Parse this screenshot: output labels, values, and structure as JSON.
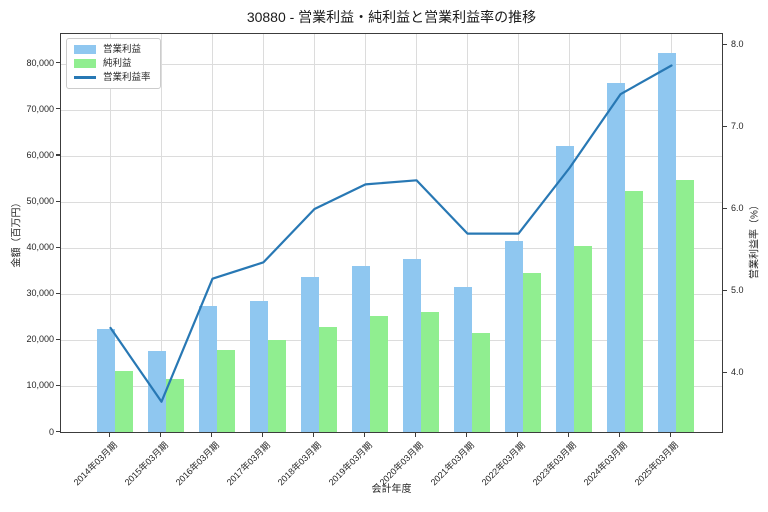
{
  "title": "30880 - 営業利益・純利益と営業利益率の推移",
  "colors": {
    "operating_profit_bar": "#8FC7F0",
    "net_profit_bar": "#90EE90",
    "margin_line": "#2878B4",
    "grid": "#DCDCDC",
    "spine": "#3C3C3C",
    "text": "#262626"
  },
  "chart_data": {
    "type": "bar",
    "title": "30880 - 営業利益・純利益と営業利益率の推移",
    "xlabel": "会計年度",
    "ylabel_left": "金額（百万円）",
    "ylabel_right": "営業利益率（%）",
    "legend_position": "upper left",
    "grid": true,
    "categories": [
      "2014年03月期",
      "2015年03月期",
      "2016年03月期",
      "2017年03月期",
      "2018年03月期",
      "2019年03月期",
      "2020年03月期",
      "2021年03月期",
      "2022年03月期",
      "2023年03月期",
      "2024年03月期",
      "2025年03月期"
    ],
    "series": [
      {
        "name": "営業利益",
        "type": "bar",
        "axis": "left",
        "color": "#8FC7F0",
        "values": [
          22400,
          17600,
          27400,
          28500,
          33700,
          36100,
          37700,
          31500,
          41500,
          62200,
          75800,
          82300
        ]
      },
      {
        "name": "純利益",
        "type": "bar",
        "axis": "left",
        "color": "#90EE90",
        "values": [
          13300,
          11500,
          17900,
          20000,
          22800,
          25200,
          26200,
          21500,
          34500,
          40500,
          52300,
          54700
        ]
      },
      {
        "name": "営業利益率",
        "type": "line",
        "axis": "right",
        "color": "#2878B4",
        "values": [
          4.55,
          3.65,
          5.15,
          5.35,
          6.0,
          6.3,
          6.35,
          5.7,
          5.7,
          6.5,
          7.4,
          7.75
        ]
      }
    ],
    "ylim_left": [
      0,
      86500
    ],
    "ylim_right": [
      3.27,
      8.13
    ],
    "yticks_left": [
      {
        "value": 0,
        "label": "0"
      },
      {
        "value": 10000,
        "label": "10,000"
      },
      {
        "value": 20000,
        "label": "20,000"
      },
      {
        "value": 30000,
        "label": "30,000"
      },
      {
        "value": 40000,
        "label": "40,000"
      },
      {
        "value": 50000,
        "label": "50,000"
      },
      {
        "value": 60000,
        "label": "60,000"
      },
      {
        "value": 70000,
        "label": "70,000"
      },
      {
        "value": 80000,
        "label": "80,000"
      }
    ],
    "yticks_right": [
      {
        "value": 4.0,
        "label": "4.0"
      },
      {
        "value": 5.0,
        "label": "5.0"
      },
      {
        "value": 6.0,
        "label": "6.0"
      },
      {
        "value": 7.0,
        "label": "7.0"
      },
      {
        "value": 8.0,
        "label": "8.0"
      }
    ]
  }
}
